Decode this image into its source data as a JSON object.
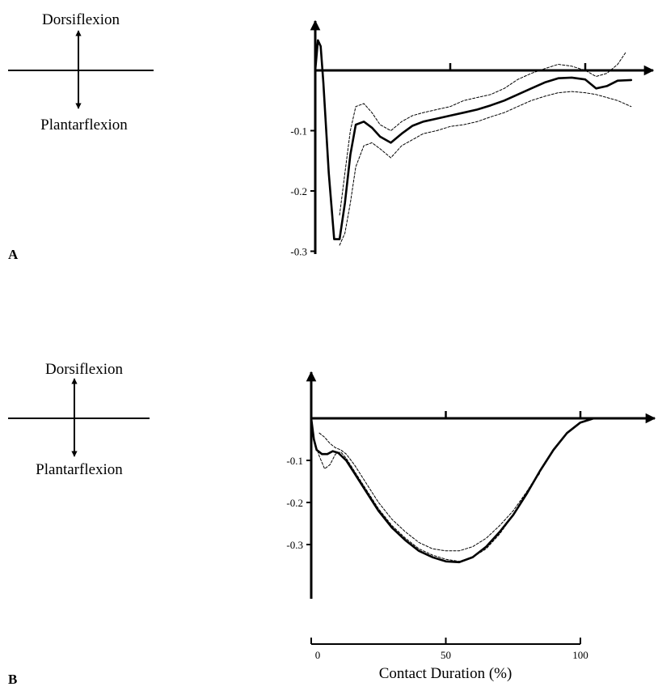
{
  "colors": {
    "ink": "#000000",
    "background": "#ffffff"
  },
  "labels": {
    "dorsiflexion": "Dorsiflexion",
    "plantarflexion": "Plantarflexion",
    "x_axis": "Contact Duration (%)"
  },
  "chart_data": [
    {
      "type": "line",
      "panel": "A",
      "xlabel": "",
      "ylabel": "",
      "xlim": [
        0,
        110
      ],
      "ylim": [
        -0.3,
        0.05
      ],
      "yticks": [
        -0.1,
        -0.2,
        -0.3
      ],
      "ytick_labels": [
        "-0.1",
        "-0.2",
        "-0.3"
      ],
      "xticks": [
        0,
        50,
        100
      ],
      "grid": false,
      "series": [
        {
          "style": "solid",
          "x": [
            0,
            1,
            2,
            3,
            5,
            7,
            9,
            11,
            13,
            15,
            18,
            21,
            24,
            28,
            32,
            36,
            40,
            45,
            50,
            55,
            60,
            65,
            70,
            75,
            80,
            85,
            90,
            95,
            100,
            104,
            108,
            112,
            117
          ],
          "y": [
            0.0,
            0.05,
            0.04,
            -0.02,
            -0.17,
            -0.28,
            -0.28,
            -0.22,
            -0.14,
            -0.09,
            -0.085,
            -0.095,
            -0.11,
            -0.12,
            -0.105,
            -0.092,
            -0.085,
            -0.08,
            -0.075,
            -0.07,
            -0.065,
            -0.058,
            -0.05,
            -0.04,
            -0.03,
            -0.02,
            -0.013,
            -0.012,
            -0.015,
            -0.03,
            -0.026,
            -0.017,
            -0.016
          ]
        },
        {
          "style": "dashed",
          "x": [
            9,
            11,
            13,
            15,
            18,
            21,
            24,
            28,
            32,
            36,
            40,
            45,
            50,
            55,
            60,
            65,
            70,
            75,
            80,
            85,
            90,
            95,
            100,
            104,
            108,
            112,
            115
          ],
          "y": [
            -0.24,
            -0.17,
            -0.1,
            -0.06,
            -0.055,
            -0.07,
            -0.09,
            -0.1,
            -0.085,
            -0.075,
            -0.07,
            -0.065,
            -0.06,
            -0.05,
            -0.045,
            -0.04,
            -0.03,
            -0.015,
            -0.005,
            0.003,
            0.01,
            0.007,
            0.0,
            -0.01,
            -0.005,
            0.01,
            0.03
          ]
        },
        {
          "style": "dashed",
          "x": [
            9,
            11,
            13,
            15,
            18,
            21,
            24,
            28,
            32,
            36,
            40,
            45,
            50,
            55,
            60,
            65,
            70,
            75,
            80,
            85,
            90,
            95,
            100,
            104,
            108,
            112,
            117
          ],
          "y": [
            -0.29,
            -0.27,
            -0.22,
            -0.16,
            -0.125,
            -0.12,
            -0.13,
            -0.145,
            -0.125,
            -0.115,
            -0.105,
            -0.1,
            -0.093,
            -0.09,
            -0.085,
            -0.077,
            -0.07,
            -0.06,
            -0.05,
            -0.043,
            -0.037,
            -0.035,
            -0.037,
            -0.04,
            -0.045,
            -0.05,
            -0.06
          ]
        }
      ]
    },
    {
      "type": "line",
      "panel": "B",
      "xlabel": "Contact Duration (%)",
      "ylabel": "",
      "xlim": [
        0,
        100
      ],
      "ylim": [
        -0.3,
        0.0
      ],
      "yticks": [
        -0.1,
        -0.2,
        -0.3
      ],
      "ytick_labels": [
        "-0.1",
        "-0.2",
        "-0.3"
      ],
      "xticks": [
        0,
        50,
        100
      ],
      "xtick_labels": [
        "0",
        "50",
        "100"
      ],
      "grid": false,
      "series": [
        {
          "style": "solid",
          "x": [
            0,
            1,
            2,
            4,
            6,
            8,
            10,
            13,
            16,
            20,
            25,
            30,
            35,
            40,
            45,
            50,
            55,
            60,
            65,
            70,
            75,
            80,
            85,
            90,
            95,
            100,
            105
          ],
          "y": [
            0.0,
            -0.05,
            -0.075,
            -0.085,
            -0.085,
            -0.078,
            -0.082,
            -0.1,
            -0.13,
            -0.17,
            -0.22,
            -0.26,
            -0.29,
            -0.315,
            -0.33,
            -0.34,
            -0.342,
            -0.33,
            -0.305,
            -0.27,
            -0.23,
            -0.18,
            -0.125,
            -0.075,
            -0.035,
            -0.01,
            0.0
          ]
        },
        {
          "style": "dashed",
          "x": [
            1,
            3,
            5,
            7,
            9,
            11,
            13,
            16,
            20,
            25,
            30,
            35,
            40,
            45,
            50,
            55,
            60,
            65,
            70,
            75,
            80,
            85
          ],
          "y": [
            -0.05,
            -0.09,
            -0.12,
            -0.11,
            -0.085,
            -0.08,
            -0.095,
            -0.125,
            -0.165,
            -0.215,
            -0.255,
            -0.285,
            -0.31,
            -0.325,
            -0.335,
            -0.34,
            -0.33,
            -0.31,
            -0.275,
            -0.23,
            -0.175,
            -0.13
          ]
        },
        {
          "style": "dashed",
          "x": [
            3,
            5,
            7,
            9,
            11,
            13,
            16,
            20,
            25,
            30,
            35,
            40,
            45,
            50,
            55,
            60,
            65,
            70,
            75,
            80,
            85
          ],
          "y": [
            -0.035,
            -0.045,
            -0.06,
            -0.07,
            -0.075,
            -0.085,
            -0.11,
            -0.15,
            -0.2,
            -0.24,
            -0.27,
            -0.295,
            -0.31,
            -0.315,
            -0.315,
            -0.305,
            -0.285,
            -0.255,
            -0.22,
            -0.175,
            -0.125
          ]
        }
      ]
    }
  ]
}
